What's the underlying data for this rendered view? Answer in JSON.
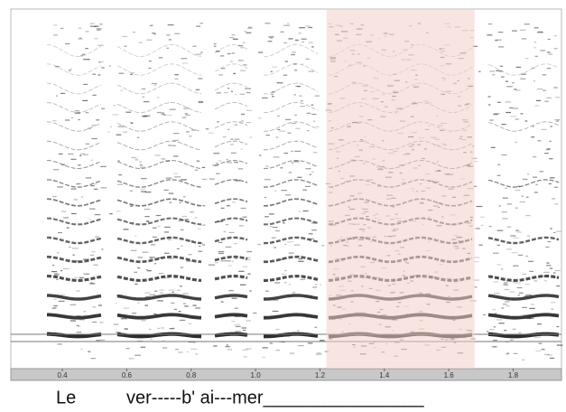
{
  "chart_data": {
    "type": "spectrogram",
    "xlim": [
      0.24,
      1.95
    ],
    "xticks": [
      0.4,
      0.6,
      0.8,
      {
        "value": 1,
        "label": "1.0"
      },
      1.2,
      1.4,
      1.6,
      1.8
    ],
    "highlight": {
      "range": [
        1.22,
        1.68
      ],
      "color": "#f2cfc9"
    },
    "lyrics": [
      "Le",
      "ver-----b' ai---mer________________"
    ]
  }
}
